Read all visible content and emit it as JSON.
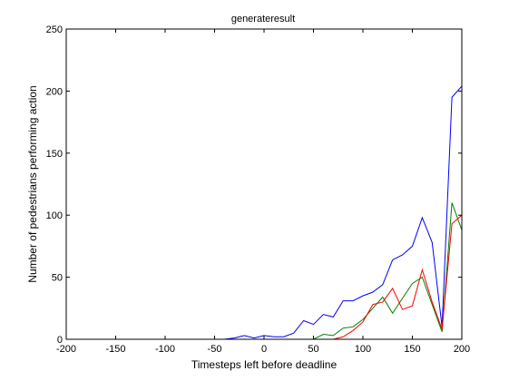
{
  "chart_data": {
    "type": "line",
    "title": "generateresult",
    "xlabel": "Timesteps left before deadline",
    "ylabel": "Number of pedestrians performing action",
    "xlim": [
      -200,
      200
    ],
    "ylim": [
      0,
      250
    ],
    "xticks": [
      -200,
      -150,
      -100,
      -50,
      0,
      50,
      100,
      150,
      200
    ],
    "yticks": [
      0,
      50,
      100,
      150,
      200,
      250
    ],
    "grid": false,
    "legend": "none",
    "series": [
      {
        "color": "#0000ff",
        "points": [
          [
            -200,
            0
          ],
          [
            -190,
            0
          ],
          [
            -180,
            0
          ],
          [
            -170,
            0
          ],
          [
            -160,
            0
          ],
          [
            -150,
            0
          ],
          [
            -140,
            0
          ],
          [
            -130,
            0
          ],
          [
            -120,
            0
          ],
          [
            -110,
            0
          ],
          [
            -100,
            0
          ],
          [
            -90,
            0
          ],
          [
            -80,
            0
          ],
          [
            -70,
            0
          ],
          [
            -60,
            0
          ],
          [
            -50,
            0
          ],
          [
            -40,
            0
          ],
          [
            -30,
            1
          ],
          [
            -20,
            3
          ],
          [
            -10,
            1
          ],
          [
            0,
            3
          ],
          [
            10,
            2
          ],
          [
            20,
            2
          ],
          [
            30,
            5
          ],
          [
            40,
            15
          ],
          [
            50,
            12
          ],
          [
            60,
            20
          ],
          [
            70,
            18
          ],
          [
            80,
            31
          ],
          [
            90,
            31
          ],
          [
            100,
            35
          ],
          [
            110,
            38
          ],
          [
            120,
            44
          ],
          [
            130,
            64
          ],
          [
            140,
            68
          ],
          [
            150,
            75
          ],
          [
            160,
            98
          ],
          [
            170,
            78
          ],
          [
            180,
            10
          ],
          [
            190,
            195
          ],
          [
            200,
            204
          ]
        ]
      },
      {
        "color": "#008000",
        "points": [
          [
            40,
            0
          ],
          [
            50,
            0
          ],
          [
            60,
            4
          ],
          [
            70,
            3
          ],
          [
            80,
            9
          ],
          [
            90,
            10
          ],
          [
            100,
            16
          ],
          [
            110,
            25
          ],
          [
            120,
            34
          ],
          [
            130,
            21
          ],
          [
            140,
            33
          ],
          [
            150,
            45
          ],
          [
            160,
            50
          ],
          [
            170,
            28
          ],
          [
            180,
            6
          ],
          [
            190,
            110
          ],
          [
            200,
            88
          ]
        ]
      },
      {
        "color": "#ff0000",
        "points": [
          [
            70,
            0
          ],
          [
            80,
            2
          ],
          [
            90,
            7
          ],
          [
            100,
            14
          ],
          [
            110,
            28
          ],
          [
            120,
            30
          ],
          [
            130,
            41
          ],
          [
            140,
            24
          ],
          [
            150,
            27
          ],
          [
            160,
            56
          ],
          [
            170,
            30
          ],
          [
            180,
            8
          ],
          [
            190,
            93
          ],
          [
            200,
            100
          ]
        ]
      }
    ]
  }
}
